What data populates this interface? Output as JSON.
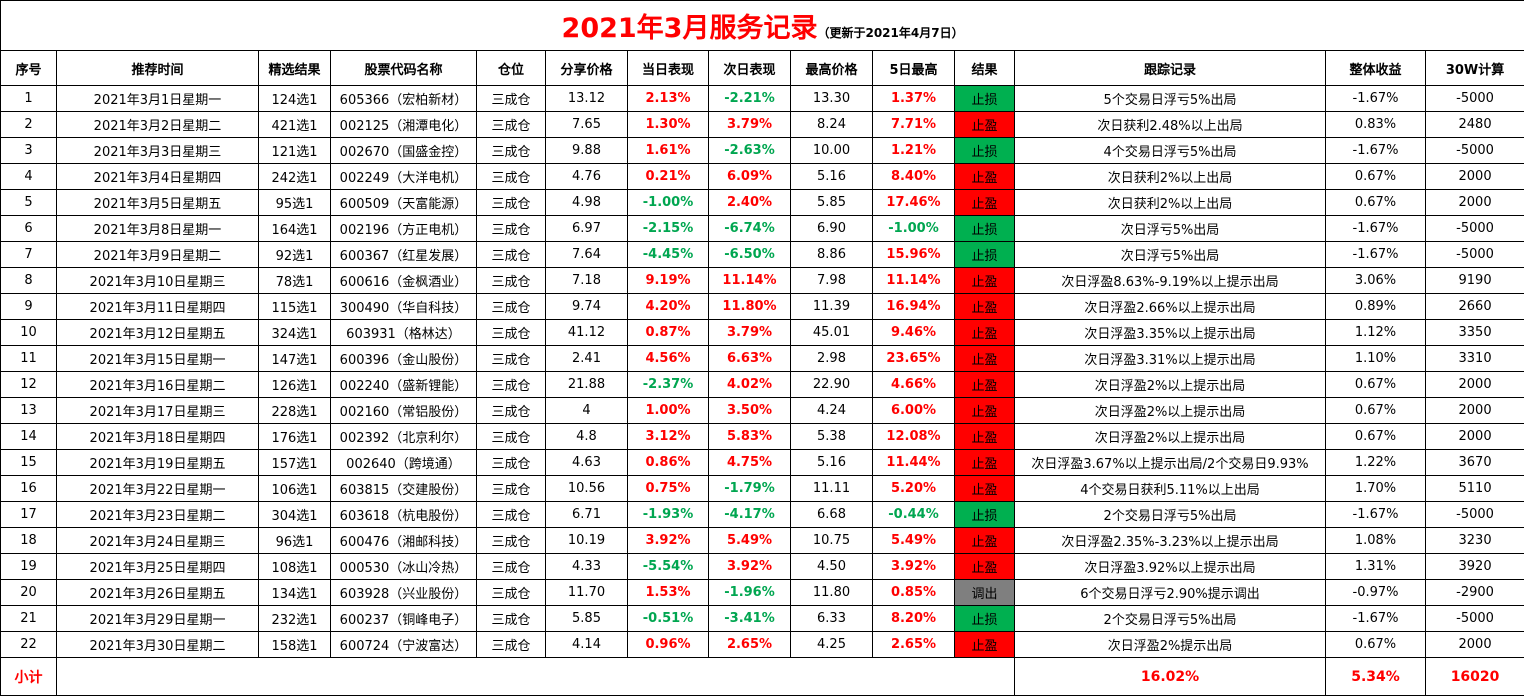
{
  "title": {
    "main": "2021年3月服务记录",
    "sub": "（更新于2021年4月7日）"
  },
  "colors": {
    "positive": "#ff0000",
    "negative": "#00a650",
    "stop_loss_bg": "#00b050",
    "take_profit_bg": "#ff0000",
    "adjust_bg": "#7f7f7f"
  },
  "headers": [
    "序号",
    "推荐时间",
    "精选结果",
    "股票代码名称",
    "仓位",
    "分享价格",
    "当日表现",
    "次日表现",
    "最高价格",
    "5日最高",
    "结果",
    "跟踪记录",
    "整体收益",
    "30W计算"
  ],
  "rows": [
    {
      "no": "1",
      "date": "2021年3月1日星期一",
      "pick": "124选1",
      "stock": "605366（宏柏新材）",
      "position": "三成仓",
      "price": "13.12",
      "day": "2.13%",
      "next": "-2.21%",
      "high": "13.30",
      "max5": "1.37%",
      "result": "止损",
      "rtype": "stop-loss",
      "track": "5个交易日浮亏5%出局",
      "gain": "-1.67%",
      "calc": "-5000"
    },
    {
      "no": "2",
      "date": "2021年3月2日星期二",
      "pick": "421选1",
      "stock": "002125（湘潭电化）",
      "position": "三成仓",
      "price": "7.65",
      "day": "1.30%",
      "next": "3.79%",
      "high": "8.24",
      "max5": "7.71%",
      "result": "止盈",
      "rtype": "take-profit",
      "track": "次日获利2.48%以上出局",
      "gain": "0.83%",
      "calc": "2480"
    },
    {
      "no": "3",
      "date": "2021年3月3日星期三",
      "pick": "121选1",
      "stock": "002670（国盛金控）",
      "position": "三成仓",
      "price": "9.88",
      "day": "1.61%",
      "next": "-2.63%",
      "high": "10.00",
      "max5": "1.21%",
      "result": "止损",
      "rtype": "stop-loss",
      "track": "4个交易日浮亏5%出局",
      "gain": "-1.67%",
      "calc": "-5000"
    },
    {
      "no": "4",
      "date": "2021年3月4日星期四",
      "pick": "242选1",
      "stock": "002249（大洋电机）",
      "position": "三成仓",
      "price": "4.76",
      "day": "0.21%",
      "next": "6.09%",
      "high": "5.16",
      "max5": "8.40%",
      "result": "止盈",
      "rtype": "take-profit",
      "track": "次日获利2%以上出局",
      "gain": "0.67%",
      "calc": "2000"
    },
    {
      "no": "5",
      "date": "2021年3月5日星期五",
      "pick": "95选1",
      "stock": "600509（天富能源）",
      "position": "三成仓",
      "price": "4.98",
      "day": "-1.00%",
      "next": "2.40%",
      "high": "5.85",
      "max5": "17.46%",
      "result": "止盈",
      "rtype": "take-profit",
      "track": "次日获利2%以上出局",
      "gain": "0.67%",
      "calc": "2000"
    },
    {
      "no": "6",
      "date": "2021年3月8日星期一",
      "pick": "164选1",
      "stock": "002196（方正电机）",
      "position": "三成仓",
      "price": "6.97",
      "day": "-2.15%",
      "next": "-6.74%",
      "high": "6.90",
      "max5": "-1.00%",
      "result": "止损",
      "rtype": "stop-loss",
      "track": "次日浮亏5%出局",
      "gain": "-1.67%",
      "calc": "-5000"
    },
    {
      "no": "7",
      "date": "2021年3月9日星期二",
      "pick": "92选1",
      "stock": "600367（红星发展）",
      "position": "三成仓",
      "price": "7.64",
      "day": "-4.45%",
      "next": "-6.50%",
      "high": "8.86",
      "max5": "15.96%",
      "result": "止损",
      "rtype": "stop-loss",
      "track": "次日浮亏5%出局",
      "gain": "-1.67%",
      "calc": "-5000"
    },
    {
      "no": "8",
      "date": "2021年3月10日星期三",
      "pick": "78选1",
      "stock": "600616（金枫酒业）",
      "position": "三成仓",
      "price": "7.18",
      "day": "9.19%",
      "next": "11.14%",
      "high": "7.98",
      "max5": "11.14%",
      "result": "止盈",
      "rtype": "take-profit",
      "track": "次日浮盈8.63%-9.19%以上提示出局",
      "gain": "3.06%",
      "calc": "9190"
    },
    {
      "no": "9",
      "date": "2021年3月11日星期四",
      "pick": "115选1",
      "stock": "300490（华自科技）",
      "position": "三成仓",
      "price": "9.74",
      "day": "4.20%",
      "next": "11.80%",
      "high": "11.39",
      "max5": "16.94%",
      "result": "止盈",
      "rtype": "take-profit",
      "track": "次日浮盈2.66%以上提示出局",
      "gain": "0.89%",
      "calc": "2660"
    },
    {
      "no": "10",
      "date": "2021年3月12日星期五",
      "pick": "324选1",
      "stock": "603931（格林达）",
      "position": "三成仓",
      "price": "41.12",
      "day": "0.87%",
      "next": "3.79%",
      "high": "45.01",
      "max5": "9.46%",
      "result": "止盈",
      "rtype": "take-profit",
      "track": "次日浮盈3.35%以上提示出局",
      "gain": "1.12%",
      "calc": "3350"
    },
    {
      "no": "11",
      "date": "2021年3月15日星期一",
      "pick": "147选1",
      "stock": "600396（金山股份）",
      "position": "三成仓",
      "price": "2.41",
      "day": "4.56%",
      "next": "6.63%",
      "high": "2.98",
      "max5": "23.65%",
      "result": "止盈",
      "rtype": "take-profit",
      "track": "次日浮盈3.31%以上提示出局",
      "gain": "1.10%",
      "calc": "3310"
    },
    {
      "no": "12",
      "date": "2021年3月16日星期二",
      "pick": "126选1",
      "stock": "002240（盛新锂能）",
      "position": "三成仓",
      "price": "21.88",
      "day": "-2.37%",
      "next": "4.02%",
      "high": "22.90",
      "max5": "4.66%",
      "result": "止盈",
      "rtype": "take-profit",
      "track": "次日浮盈2%以上提示出局",
      "gain": "0.67%",
      "calc": "2000"
    },
    {
      "no": "13",
      "date": "2021年3月17日星期三",
      "pick": "228选1",
      "stock": "002160（常铝股份）",
      "position": "三成仓",
      "price": "4",
      "day": "1.00%",
      "next": "3.50%",
      "high": "4.24",
      "max5": "6.00%",
      "result": "止盈",
      "rtype": "take-profit",
      "track": "次日浮盈2%以上提示出局",
      "gain": "0.67%",
      "calc": "2000"
    },
    {
      "no": "14",
      "date": "2021年3月18日星期四",
      "pick": "176选1",
      "stock": "002392（北京利尔）",
      "position": "三成仓",
      "price": "4.8",
      "day": "3.12%",
      "next": "5.83%",
      "high": "5.38",
      "max5": "12.08%",
      "result": "止盈",
      "rtype": "take-profit",
      "track": "次日浮盈2%以上提示出局",
      "gain": "0.67%",
      "calc": "2000"
    },
    {
      "no": "15",
      "date": "2021年3月19日星期五",
      "pick": "157选1",
      "stock": "002640（跨境通）",
      "position": "三成仓",
      "price": "4.63",
      "day": "0.86%",
      "next": "4.75%",
      "high": "5.16",
      "max5": "11.44%",
      "result": "止盈",
      "rtype": "take-profit",
      "track": "次日浮盈3.67%以上提示出局/2个交易日9.93%",
      "gain": "1.22%",
      "calc": "3670"
    },
    {
      "no": "16",
      "date": "2021年3月22日星期一",
      "pick": "106选1",
      "stock": "603815（交建股份）",
      "position": "三成仓",
      "price": "10.56",
      "day": "0.75%",
      "next": "-1.79%",
      "high": "11.11",
      "max5": "5.20%",
      "result": "止盈",
      "rtype": "take-profit",
      "track": "4个交易日获利5.11%以上出局",
      "gain": "1.70%",
      "calc": "5110"
    },
    {
      "no": "17",
      "date": "2021年3月23日星期二",
      "pick": "304选1",
      "stock": "603618（杭电股份）",
      "position": "三成仓",
      "price": "6.71",
      "day": "-1.93%",
      "next": "-4.17%",
      "high": "6.68",
      "max5": "-0.44%",
      "result": "止损",
      "rtype": "stop-loss",
      "track": "2个交易日浮亏5%出局",
      "gain": "-1.67%",
      "calc": "-5000"
    },
    {
      "no": "18",
      "date": "2021年3月24日星期三",
      "pick": "96选1",
      "stock": "600476（湘邮科技）",
      "position": "三成仓",
      "price": "10.19",
      "day": "3.92%",
      "next": "5.49%",
      "high": "10.75",
      "max5": "5.49%",
      "result": "止盈",
      "rtype": "take-profit",
      "track": "次日浮盈2.35%-3.23%以上提示出局",
      "gain": "1.08%",
      "calc": "3230"
    },
    {
      "no": "19",
      "date": "2021年3月25日星期四",
      "pick": "108选1",
      "stock": "000530（冰山冷热）",
      "position": "三成仓",
      "price": "4.33",
      "day": "-5.54%",
      "next": "3.92%",
      "high": "4.50",
      "max5": "3.92%",
      "result": "止盈",
      "rtype": "take-profit",
      "track": "次日浮盈3.92%以上提示出局",
      "gain": "1.31%",
      "calc": "3920"
    },
    {
      "no": "20",
      "date": "2021年3月26日星期五",
      "pick": "134选1",
      "stock": "603928（兴业股份）",
      "position": "三成仓",
      "price": "11.70",
      "day": "1.53%",
      "next": "-1.96%",
      "high": "11.80",
      "max5": "0.85%",
      "result": "调出",
      "rtype": "adjust",
      "track": "6个交易日浮亏2.90%提示调出",
      "gain": "-0.97%",
      "calc": "-2900"
    },
    {
      "no": "21",
      "date": "2021年3月29日星期一",
      "pick": "232选1",
      "stock": "600237（铜峰电子）",
      "position": "三成仓",
      "price": "5.85",
      "day": "-0.51%",
      "next": "-3.41%",
      "high": "6.33",
      "max5": "8.20%",
      "result": "止损",
      "rtype": "stop-loss",
      "track": "2个交易日浮亏5%出局",
      "gain": "-1.67%",
      "calc": "-5000"
    },
    {
      "no": "22",
      "date": "2021年3月30日星期二",
      "pick": "158选1",
      "stock": "600724（宁波富达）",
      "position": "三成仓",
      "price": "4.14",
      "day": "0.96%",
      "next": "2.65%",
      "high": "4.25",
      "max5": "2.65%",
      "result": "止盈",
      "rtype": "take-profit",
      "track": "次日浮盈2%提示出局",
      "gain": "0.67%",
      "calc": "2000"
    }
  ],
  "totals": {
    "label": "小计",
    "track_total": "16.02%",
    "gain_total": "5.34%",
    "calc_total": "16020"
  }
}
